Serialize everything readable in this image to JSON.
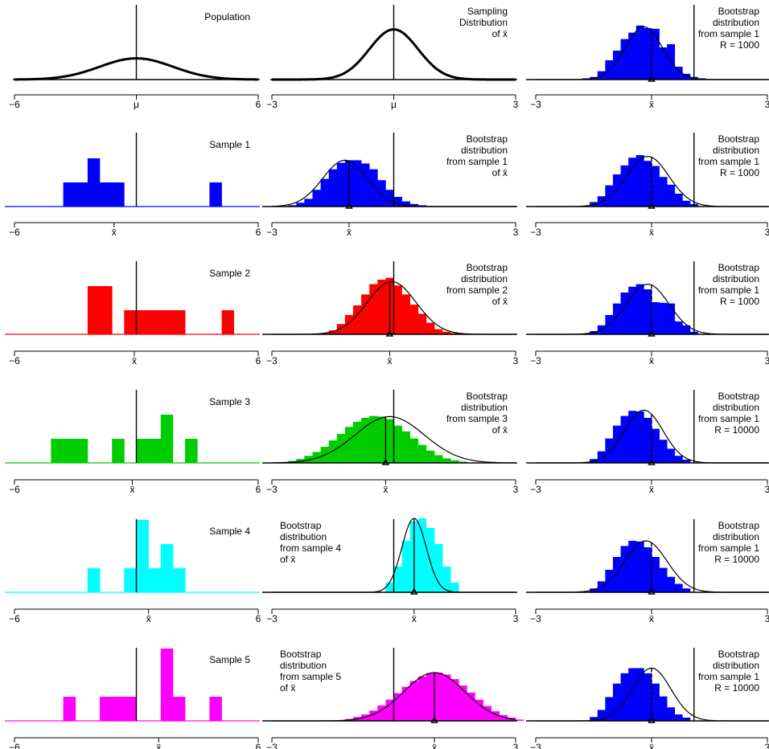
{
  "figure": {
    "colors": {
      "blue": "#0000ff",
      "red": "#ff0000",
      "green": "#00cd00",
      "cyan": "#00ffff",
      "magenta": "#ff00ff",
      "black": "#000000"
    },
    "mu_label": "μ",
    "xbar_label": "x̄"
  },
  "chart_data": [
    {
      "id": "population",
      "type": "density",
      "label_lines": [
        "Population"
      ],
      "xlim": [
        -6,
        6
      ],
      "tick_labels": [
        "−6",
        "μ",
        "6"
      ],
      "curve": {
        "mean": 0,
        "sd": 1.8,
        "height": 0.33
      },
      "vline": 0
    },
    {
      "id": "sampling",
      "type": "density",
      "label_lines": [
        "Sampling",
        "Distribution",
        "of x̄"
      ],
      "xlim": [
        -3,
        3
      ],
      "tick_labels": [
        "−3",
        "μ",
        "3"
      ],
      "curve": {
        "mean": 0,
        "sd": 0.6,
        "height": 0.78
      },
      "vline": 0
    },
    {
      "id": "boot-s1-r1000-a",
      "type": "bootstrap",
      "label_lines": [
        "Bootstrap",
        "distribution",
        "from sample 1",
        "R = 1000"
      ],
      "xlim": [
        -3,
        3
      ],
      "tick_labels": [
        "−3",
        "x̄",
        "3"
      ],
      "fill": "blue",
      "curve": {
        "mean": -0.2,
        "sd": 0.48,
        "height": 0.82
      },
      "xbar": 0,
      "vline": 1.1,
      "bins": {
        "start": -1.8,
        "width": 0.2,
        "heights": [
          0.02,
          0.04,
          0.13,
          0.3,
          0.45,
          0.63,
          0.73,
          0.84,
          0.8,
          0.79,
          0.5,
          0.55,
          0.2,
          0.09,
          0.04,
          0.02
        ]
      }
    },
    {
      "id": "sample1",
      "type": "sample",
      "label_lines": [
        "Sample 1"
      ],
      "xlim": [
        -6,
        6
      ],
      "tick_labels": [
        "−6",
        "x̄",
        "6"
      ],
      "fill": "blue",
      "xbar": -1.1,
      "vline": 0,
      "bins": {
        "start": -3.6,
        "width": 0.6,
        "heights": [
          1,
          1,
          2,
          1,
          1,
          0,
          0,
          0,
          0,
          0,
          0,
          0,
          1
        ]
      }
    },
    {
      "id": "boot-s1",
      "type": "bootstrap",
      "label_lines": [
        "Bootstrap",
        "distribution",
        "from sample 1",
        "of x̄"
      ],
      "xlim": [
        -3,
        3
      ],
      "tick_labels": [
        "−3",
        "x̄",
        "3"
      ],
      "fill": "blue",
      "curve": {
        "mean": -1.2,
        "sd": 0.55,
        "height": 0.72
      },
      "xbar": -1.1,
      "vline": 0,
      "bins": {
        "start": -2.6,
        "width": 0.2,
        "heights": [
          0.02,
          0.06,
          0.12,
          0.26,
          0.43,
          0.58,
          0.68,
          0.72,
          0.72,
          0.67,
          0.58,
          0.41,
          0.26,
          0.15,
          0.08,
          0.04,
          0.02
        ]
      }
    },
    {
      "id": "boot-s1-r1000-b",
      "type": "bootstrap",
      "label_lines": [
        "Bootstrap",
        "distribution",
        "from sample 1",
        "R = 1000"
      ],
      "xlim": [
        -3,
        3
      ],
      "tick_labels": [
        "−3",
        "x̄",
        "3"
      ],
      "fill": "blue",
      "curve": {
        "mean": -0.1,
        "sd": 0.55,
        "height": 0.78
      },
      "xbar": 0,
      "vline": 1.1,
      "bins": {
        "start": -1.6,
        "width": 0.2,
        "heights": [
          0.07,
          0.16,
          0.33,
          0.5,
          0.64,
          0.76,
          0.8,
          0.71,
          0.63,
          0.46,
          0.34,
          0.2,
          0.09,
          0.04
        ]
      }
    },
    {
      "id": "sample2",
      "type": "sample",
      "label_lines": [
        "Sample 2"
      ],
      "xlim": [
        -6,
        6
      ],
      "tick_labels": [
        "−6",
        "x̄",
        "6"
      ],
      "fill": "red",
      "xbar": -0.1,
      "vline": 0,
      "bins": {
        "start": -2.4,
        "width": 0.6,
        "heights": [
          2,
          2,
          0,
          1,
          1,
          1,
          1,
          1,
          0,
          0,
          0,
          1
        ]
      }
    },
    {
      "id": "boot-s2",
      "type": "bootstrap",
      "label_lines": [
        "Bootstrap",
        "distribution",
        "from sample 2",
        "of x̄"
      ],
      "xlim": [
        -3,
        3
      ],
      "tick_labels": [
        "−3",
        "x̄",
        "3"
      ],
      "fill": "red",
      "curve": {
        "mean": -0.05,
        "sd": 0.6,
        "height": 0.82
      },
      "xbar": -0.1,
      "vline": 0,
      "bins": {
        "start": -1.8,
        "width": 0.2,
        "heights": [
          0.02,
          0.06,
          0.16,
          0.3,
          0.45,
          0.62,
          0.78,
          0.85,
          0.88,
          0.76,
          0.62,
          0.46,
          0.32,
          0.18,
          0.08,
          0.04,
          0.02,
          0.01
        ]
      }
    },
    {
      "id": "boot-s1-r1000-c",
      "type": "bootstrap",
      "label_lines": [
        "Bootstrap",
        "distribution",
        "from sample 1",
        "R = 1000"
      ],
      "xlim": [
        -3,
        3
      ],
      "tick_labels": [
        "−3",
        "x̄",
        "3"
      ],
      "fill": "blue",
      "curve": {
        "mean": -0.1,
        "sd": 0.55,
        "height": 0.78
      },
      "xbar": 0,
      "vline": 1.1,
      "bins": {
        "start": -1.6,
        "width": 0.2,
        "heights": [
          0.05,
          0.14,
          0.3,
          0.48,
          0.65,
          0.74,
          0.78,
          0.7,
          0.5,
          0.49,
          0.48,
          0.2,
          0.14,
          0.04
        ]
      }
    },
    {
      "id": "sample3",
      "type": "sample",
      "label_lines": [
        "Sample 3"
      ],
      "xlim": [
        -6,
        6
      ],
      "tick_labels": [
        "−6",
        "x̄",
        "6"
      ],
      "fill": "green",
      "xbar": -0.2,
      "vline": 0,
      "bins": {
        "start": -4.2,
        "width": 0.6,
        "heights": [
          1,
          1,
          1,
          0,
          0,
          1,
          0,
          1,
          1,
          2,
          0,
          1
        ]
      }
    },
    {
      "id": "boot-s3",
      "type": "bootstrap",
      "label_lines": [
        "Bootstrap",
        "distribution",
        "from sample 3",
        "of x̄"
      ],
      "xlim": [
        -3,
        3
      ],
      "tick_labels": [
        "−3",
        "x̄",
        "3"
      ],
      "fill": "green",
      "curve": {
        "mean": -0.1,
        "sd": 0.85,
        "height": 0.72
      },
      "xbar": -0.2,
      "vline": 0,
      "bins": {
        "start": -2.6,
        "width": 0.2,
        "heights": [
          0.03,
          0.06,
          0.11,
          0.17,
          0.25,
          0.35,
          0.45,
          0.56,
          0.64,
          0.7,
          0.73,
          0.72,
          0.68,
          0.58,
          0.49,
          0.38,
          0.28,
          0.19,
          0.12,
          0.07,
          0.04,
          0.02
        ]
      }
    },
    {
      "id": "boot-s1-r10000-a",
      "type": "bootstrap",
      "label_lines": [
        "Bootstrap",
        "distribution",
        "from sample 1",
        "R = 10000"
      ],
      "xlim": [
        -3,
        3
      ],
      "tick_labels": [
        "−3",
        "x̄",
        "3"
      ],
      "fill": "blue",
      "curve": {
        "mean": -0.2,
        "sd": 0.5,
        "height": 0.82
      },
      "xbar": 0,
      "vline": 1.1,
      "bins": {
        "start": -1.6,
        "width": 0.2,
        "heights": [
          0.06,
          0.18,
          0.38,
          0.58,
          0.73,
          0.81,
          0.8,
          0.7,
          0.53,
          0.36,
          0.22,
          0.11,
          0.05
        ]
      }
    },
    {
      "id": "sample4",
      "type": "sample",
      "label_lines": [
        "Sample 4"
      ],
      "xlim": [
        -6,
        6
      ],
      "tick_labels": [
        "−6",
        "x̄",
        "6"
      ],
      "fill": "cyan",
      "xbar": 0.6,
      "vline": 0,
      "bins": {
        "start": -2.4,
        "width": 0.6,
        "heights": [
          1,
          0,
          0,
          1,
          3,
          1,
          2,
          1,
          0
        ]
      }
    },
    {
      "id": "boot-s4",
      "type": "bootstrap",
      "label_lines": [
        "Bootstrap",
        "distribution",
        "from sample 4",
        "of x̄"
      ],
      "xlim": [
        -3,
        3
      ],
      "tick_labels": [
        "−3",
        "x̄",
        "3"
      ],
      "fill": "cyan",
      "curve": {
        "mean": 0.5,
        "sd": 0.3,
        "height": 1.15
      },
      "xbar": 0.5,
      "vline": 0,
      "bins": {
        "start": -0.2,
        "width": 0.2,
        "heights": [
          0.15,
          0.4,
          0.8,
          1.1,
          1.15,
          1.0,
          0.75,
          0.4,
          0.15
        ]
      }
    },
    {
      "id": "boot-s1-r10000-b",
      "type": "bootstrap",
      "label_lines": [
        "Bootstrap",
        "distribution",
        "from sample 1",
        "R = 10000"
      ],
      "xlim": [
        -3,
        3
      ],
      "tick_labels": [
        "−3",
        "x̄",
        "3"
      ],
      "fill": "blue",
      "curve": {
        "mean": -0.15,
        "sd": 0.55,
        "height": 0.8
      },
      "xbar": 0,
      "vline": 1.1,
      "bins": {
        "start": -1.6,
        "width": 0.2,
        "heights": [
          0.06,
          0.17,
          0.35,
          0.55,
          0.72,
          0.8,
          0.79,
          0.7,
          0.55,
          0.38,
          0.24,
          0.13,
          0.06
        ]
      }
    },
    {
      "id": "sample5",
      "type": "sample",
      "label_lines": [
        "Sample 5"
      ],
      "xlim": [
        -6,
        6
      ],
      "tick_labels": [
        "−6",
        "x̄",
        "6"
      ],
      "fill": "magenta",
      "xbar": 1.1,
      "vline": 0,
      "bins": {
        "start": -3.6,
        "width": 0.6,
        "heights": [
          1,
          0,
          0,
          1,
          1,
          1,
          0,
          0,
          3,
          1,
          0,
          0,
          1
        ]
      }
    },
    {
      "id": "boot-s5",
      "type": "bootstrap",
      "label_lines": [
        "Bootstrap",
        "distribution",
        "from sample 5",
        "of x̄"
      ],
      "xlim": [
        -3,
        3
      ],
      "tick_labels": [
        "−3",
        "x̄",
        "3"
      ],
      "fill": "magenta",
      "curve": {
        "mean": 1.0,
        "sd": 0.75,
        "height": 0.75
      },
      "xbar": 1.0,
      "vline": 0,
      "bins": {
        "start": -1.2,
        "width": 0.2,
        "heights": [
          0.03,
          0.06,
          0.1,
          0.16,
          0.24,
          0.33,
          0.43,
          0.53,
          0.62,
          0.69,
          0.74,
          0.75,
          0.72,
          0.65,
          0.55,
          0.44,
          0.33,
          0.23,
          0.15,
          0.09,
          0.05,
          0.02
        ]
      }
    },
    {
      "id": "boot-s1-r10000-c",
      "type": "bootstrap",
      "label_lines": [
        "Bootstrap",
        "distribution",
        "from sample 1",
        "R = 10000"
      ],
      "xlim": [
        -3,
        3
      ],
      "tick_labels": [
        "−3",
        "x̄",
        "3"
      ],
      "fill": "blue",
      "curve": {
        "mean": 0,
        "sd": 0.5,
        "height": 0.82
      },
      "xbar": 0,
      "vline": 1.1,
      "bins": {
        "start": -1.6,
        "width": 0.2,
        "heights": [
          0.06,
          0.17,
          0.37,
          0.58,
          0.74,
          0.82,
          0.82,
          0.74,
          0.58,
          0.38,
          0.21,
          0.1,
          0.05
        ]
      }
    }
  ]
}
